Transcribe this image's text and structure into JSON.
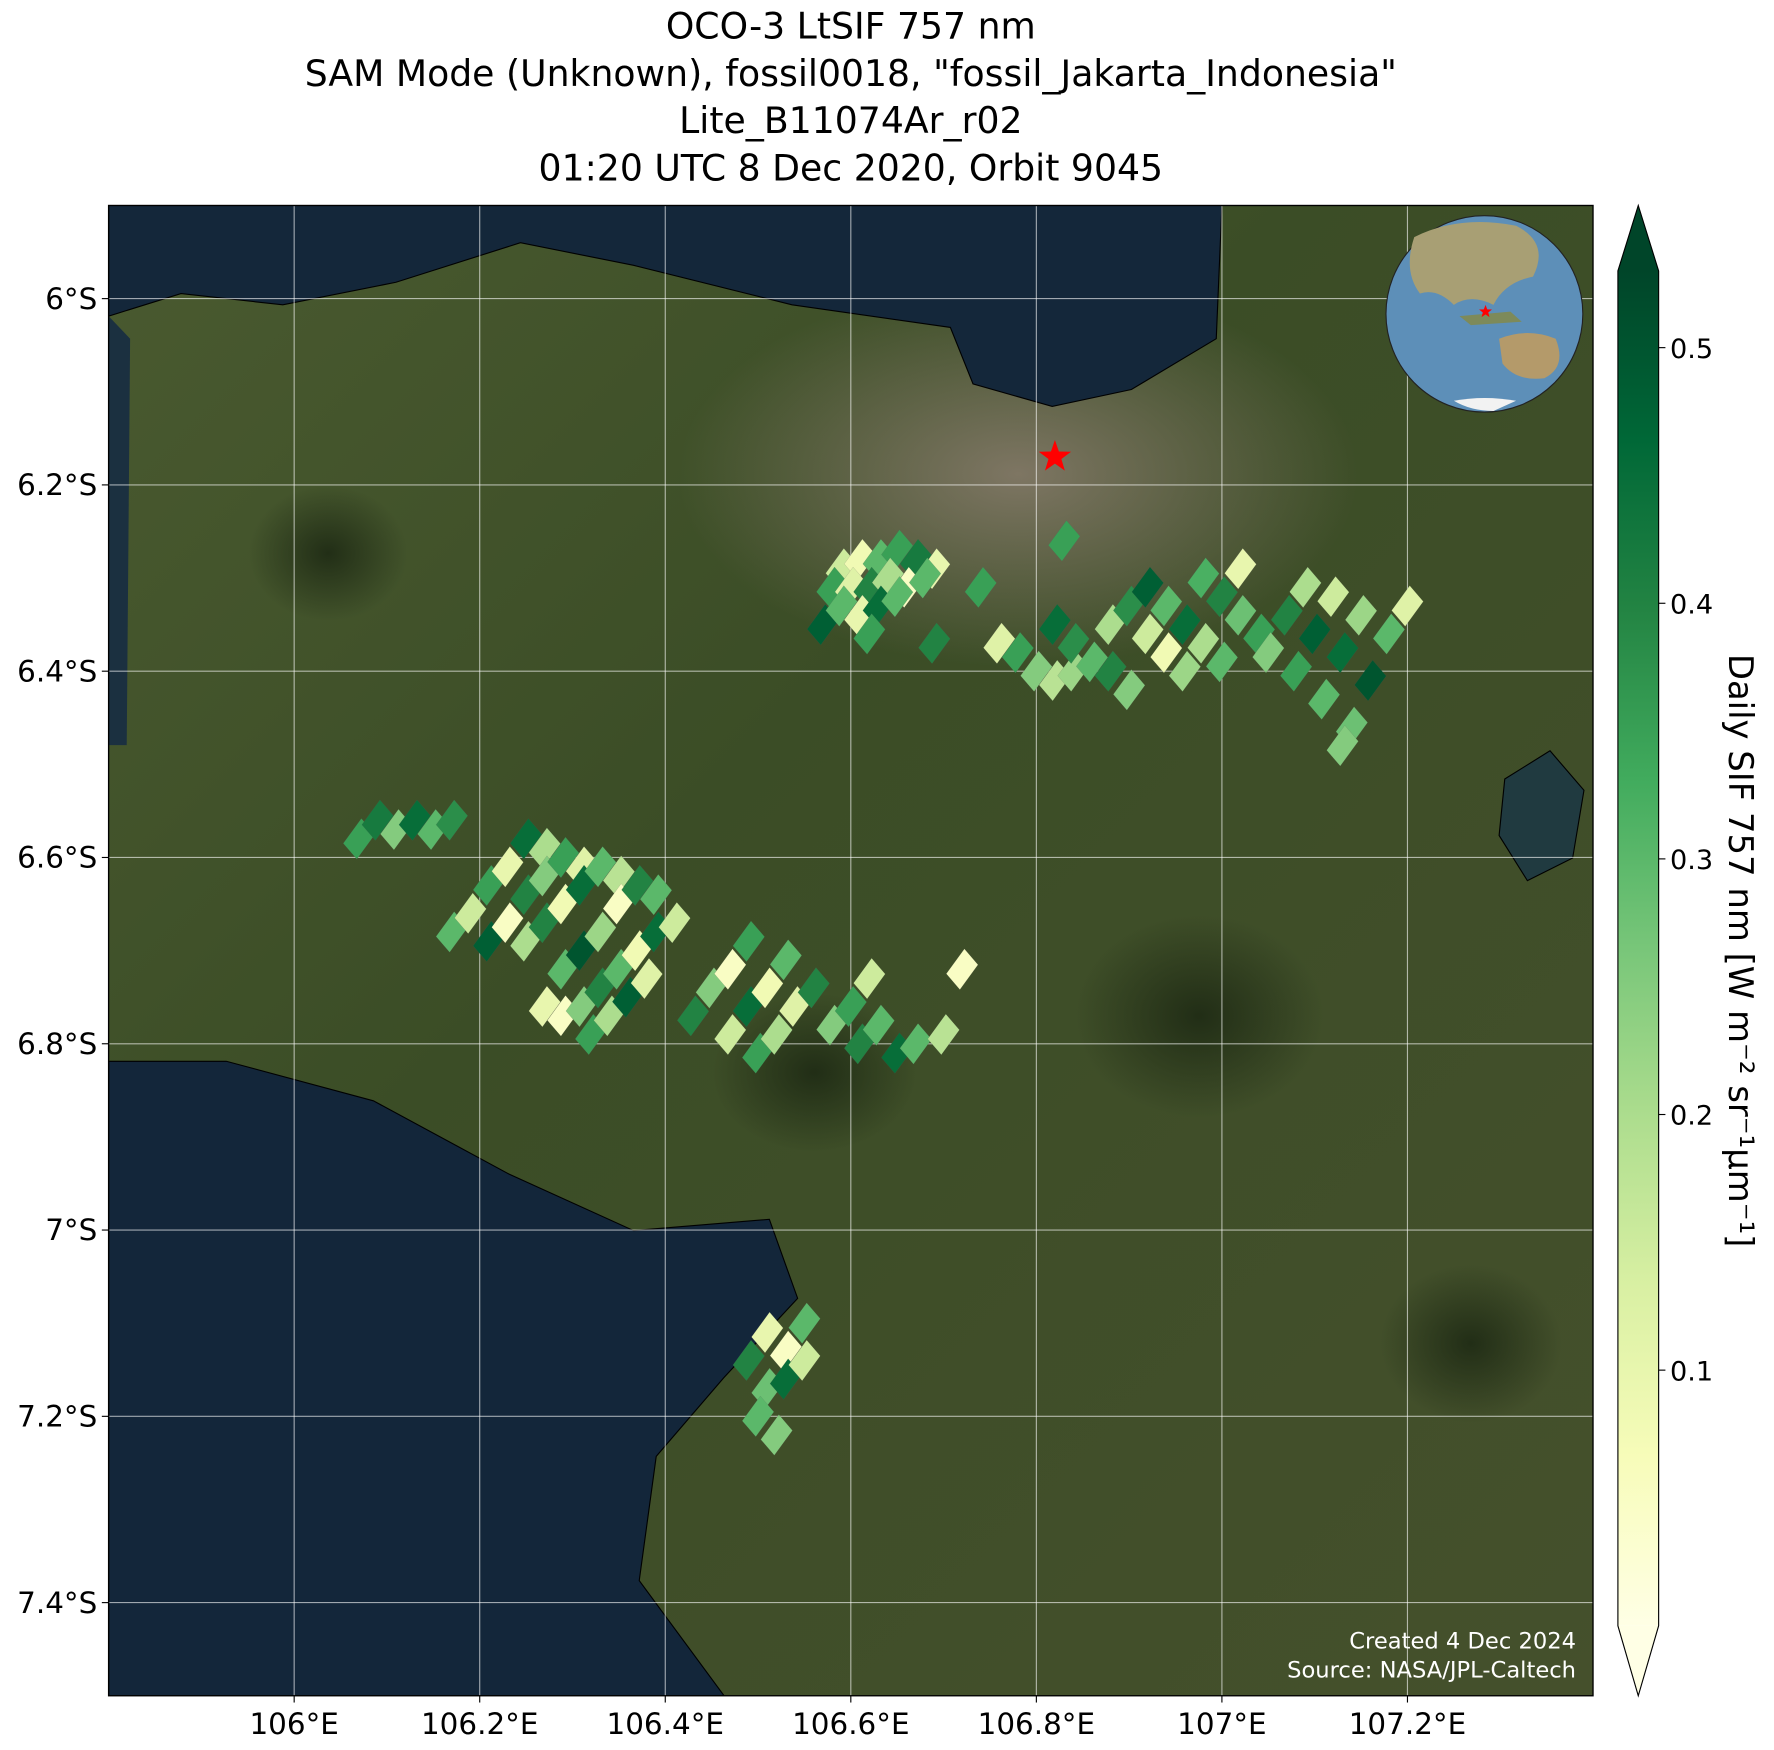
{
  "chart_data": {
    "type": "footprint-map",
    "title_lines": [
      "OCO-3 LtSIF 757 nm",
      "SAM Mode (Unknown), fossil0018, \"fossil_Jakarta_Indonesia\"",
      "Lite_B11074Ar_r02",
      "01:20 UTC 8 Dec 2020, Orbit 9045"
    ],
    "xlim": [
      105.8,
      107.4
    ],
    "ylim": [
      -7.5,
      -5.9
    ],
    "xticks": [
      {
        "value": 106,
        "label": "106°E"
      },
      {
        "value": 106.2,
        "label": "106.2°E"
      },
      {
        "value": 106.4,
        "label": "106.4°E"
      },
      {
        "value": 106.6,
        "label": "106.6°E"
      },
      {
        "value": 106.8,
        "label": "106.8°E"
      },
      {
        "value": 107,
        "label": "107°E"
      },
      {
        "value": 107.2,
        "label": "107.2°E"
      }
    ],
    "yticks": [
      {
        "value": -6,
        "label": "6°S"
      },
      {
        "value": -6.2,
        "label": "6.2°S"
      },
      {
        "value": -6.4,
        "label": "6.4°S"
      },
      {
        "value": -6.6,
        "label": "6.6°S"
      },
      {
        "value": -6.8,
        "label": "6.8°S"
      },
      {
        "value": -7,
        "label": "7°S"
      },
      {
        "value": -7.2,
        "label": "7.2°S"
      },
      {
        "value": -7.4,
        "label": "7.4°S"
      }
    ],
    "grid": true,
    "colorbar": {
      "label": "Daily SIF 757 nm [W m⁻² sr⁻¹μm⁻¹]",
      "clim": [
        0,
        0.53
      ],
      "ticks": [
        0.1,
        0.2,
        0.3,
        0.4,
        0.5
      ],
      "extend": "both"
    },
    "colormap": [
      "#ffffe5",
      "#f7fcb9",
      "#d9f0a3",
      "#addd8e",
      "#78c679",
      "#41ab5d",
      "#238443",
      "#006837",
      "#004529"
    ],
    "target": {
      "lon": 106.82,
      "lat": -6.17,
      "color": "#ff0000"
    },
    "annotations": [
      "Created 4 Dec 2024",
      "Source: NASA/JPL-Caltech"
    ],
    "points": [
      {
        "lon": 106.59,
        "lat": -6.29,
        "value": 0.15
      },
      {
        "lon": 106.61,
        "lat": -6.28,
        "value": 0.08
      },
      {
        "lon": 106.63,
        "lat": -6.28,
        "value": 0.3
      },
      {
        "lon": 106.65,
        "lat": -6.27,
        "value": 0.35
      },
      {
        "lon": 106.67,
        "lat": -6.28,
        "value": 0.42
      },
      {
        "lon": 106.69,
        "lat": -6.29,
        "value": 0.1
      },
      {
        "lon": 106.58,
        "lat": -6.31,
        "value": 0.35
      },
      {
        "lon": 106.6,
        "lat": -6.31,
        "value": 0.12
      },
      {
        "lon": 106.62,
        "lat": -6.31,
        "value": 0.4
      },
      {
        "lon": 106.64,
        "lat": -6.3,
        "value": 0.2
      },
      {
        "lon": 106.66,
        "lat": -6.31,
        "value": 0.05
      },
      {
        "lon": 106.68,
        "lat": -6.3,
        "value": 0.3
      },
      {
        "lon": 106.57,
        "lat": -6.35,
        "value": 0.48
      },
      {
        "lon": 106.59,
        "lat": -6.33,
        "value": 0.3
      },
      {
        "lon": 106.61,
        "lat": -6.34,
        "value": 0.1
      },
      {
        "lon": 106.63,
        "lat": -6.33,
        "value": 0.45
      },
      {
        "lon": 106.65,
        "lat": -6.32,
        "value": 0.3
      },
      {
        "lon": 106.62,
        "lat": -6.36,
        "value": 0.35
      },
      {
        "lon": 106.69,
        "lat": -6.37,
        "value": 0.4
      },
      {
        "lon": 106.74,
        "lat": -6.31,
        "value": 0.35
      },
      {
        "lon": 106.83,
        "lat": -6.26,
        "value": 0.35
      },
      {
        "lon": 106.76,
        "lat": -6.37,
        "value": 0.12
      },
      {
        "lon": 106.78,
        "lat": -6.38,
        "value": 0.35
      },
      {
        "lon": 106.8,
        "lat": -6.4,
        "value": 0.25
      },
      {
        "lon": 106.82,
        "lat": -6.41,
        "value": 0.18
      },
      {
        "lon": 106.84,
        "lat": -6.4,
        "value": 0.22
      },
      {
        "lon": 106.82,
        "lat": -6.35,
        "value": 0.45
      },
      {
        "lon": 106.84,
        "lat": -6.37,
        "value": 0.38
      },
      {
        "lon": 106.86,
        "lat": -6.39,
        "value": 0.3
      },
      {
        "lon": 106.88,
        "lat": -6.4,
        "value": 0.4
      },
      {
        "lon": 106.9,
        "lat": -6.42,
        "value": 0.25
      },
      {
        "lon": 106.88,
        "lat": -6.35,
        "value": 0.2
      },
      {
        "lon": 106.9,
        "lat": -6.33,
        "value": 0.38
      },
      {
        "lon": 106.92,
        "lat": -6.36,
        "value": 0.15
      },
      {
        "lon": 106.94,
        "lat": -6.38,
        "value": 0.08
      },
      {
        "lon": 106.96,
        "lat": -6.4,
        "value": 0.22
      },
      {
        "lon": 106.92,
        "lat": -6.31,
        "value": 0.48
      },
      {
        "lon": 106.94,
        "lat": -6.33,
        "value": 0.3
      },
      {
        "lon": 106.96,
        "lat": -6.35,
        "value": 0.45
      },
      {
        "lon": 106.98,
        "lat": -6.37,
        "value": 0.2
      },
      {
        "lon": 107,
        "lat": -6.39,
        "value": 0.3
      },
      {
        "lon": 106.98,
        "lat": -6.3,
        "value": 0.32
      },
      {
        "lon": 107,
        "lat": -6.32,
        "value": 0.4
      },
      {
        "lon": 107.02,
        "lat": -6.34,
        "value": 0.28
      },
      {
        "lon": 107.04,
        "lat": -6.36,
        "value": 0.35
      },
      {
        "lon": 107.02,
        "lat": -6.29,
        "value": 0.1
      },
      {
        "lon": 107.05,
        "lat": -6.38,
        "value": 0.25
      },
      {
        "lon": 107.07,
        "lat": -6.34,
        "value": 0.4
      },
      {
        "lon": 107.09,
        "lat": -6.31,
        "value": 0.2
      },
      {
        "lon": 107.08,
        "lat": -6.4,
        "value": 0.35
      },
      {
        "lon": 107.1,
        "lat": -6.36,
        "value": 0.48
      },
      {
        "lon": 107.12,
        "lat": -6.32,
        "value": 0.15
      },
      {
        "lon": 107.11,
        "lat": -6.43,
        "value": 0.3
      },
      {
        "lon": 107.13,
        "lat": -6.38,
        "value": 0.45
      },
      {
        "lon": 107.15,
        "lat": -6.34,
        "value": 0.22
      },
      {
        "lon": 107.14,
        "lat": -6.46,
        "value": 0.28
      },
      {
        "lon": 107.16,
        "lat": -6.41,
        "value": 0.5
      },
      {
        "lon": 107.18,
        "lat": -6.36,
        "value": 0.3
      },
      {
        "lon": 107.2,
        "lat": -6.33,
        "value": 0.12
      },
      {
        "lon": 107.13,
        "lat": -6.48,
        "value": 0.25
      },
      {
        "lon": 106.07,
        "lat": -6.58,
        "value": 0.35
      },
      {
        "lon": 106.09,
        "lat": -6.56,
        "value": 0.42
      },
      {
        "lon": 106.11,
        "lat": -6.57,
        "value": 0.25
      },
      {
        "lon": 106.13,
        "lat": -6.56,
        "value": 0.45
      },
      {
        "lon": 106.15,
        "lat": -6.57,
        "value": 0.3
      },
      {
        "lon": 106.17,
        "lat": -6.56,
        "value": 0.38
      },
      {
        "lon": 106.17,
        "lat": -6.68,
        "value": 0.3
      },
      {
        "lon": 106.19,
        "lat": -6.66,
        "value": 0.15
      },
      {
        "lon": 106.21,
        "lat": -6.63,
        "value": 0.35
      },
      {
        "lon": 106.23,
        "lat": -6.61,
        "value": 0.1
      },
      {
        "lon": 106.25,
        "lat": -6.58,
        "value": 0.45
      },
      {
        "lon": 106.27,
        "lat": -6.59,
        "value": 0.2
      },
      {
        "lon": 106.21,
        "lat": -6.69,
        "value": 0.48
      },
      {
        "lon": 106.23,
        "lat": -6.67,
        "value": 0.05
      },
      {
        "lon": 106.25,
        "lat": -6.64,
        "value": 0.4
      },
      {
        "lon": 106.27,
        "lat": -6.62,
        "value": 0.25
      },
      {
        "lon": 106.29,
        "lat": -6.6,
        "value": 0.35
      },
      {
        "lon": 106.31,
        "lat": -6.61,
        "value": 0.12
      },
      {
        "lon": 106.25,
        "lat": -6.69,
        "value": 0.2
      },
      {
        "lon": 106.27,
        "lat": -6.67,
        "value": 0.4
      },
      {
        "lon": 106.29,
        "lat": -6.65,
        "value": 0.08
      },
      {
        "lon": 106.31,
        "lat": -6.63,
        "value": 0.45
      },
      {
        "lon": 106.33,
        "lat": -6.61,
        "value": 0.3
      },
      {
        "lon": 106.35,
        "lat": -6.62,
        "value": 0.18
      },
      {
        "lon": 106.29,
        "lat": -6.72,
        "value": 0.3
      },
      {
        "lon": 106.31,
        "lat": -6.7,
        "value": 0.5
      },
      {
        "lon": 106.33,
        "lat": -6.68,
        "value": 0.22
      },
      {
        "lon": 106.35,
        "lat": -6.65,
        "value": 0.05
      },
      {
        "lon": 106.37,
        "lat": -6.63,
        "value": 0.4
      },
      {
        "lon": 106.39,
        "lat": -6.64,
        "value": 0.3
      },
      {
        "lon": 106.27,
        "lat": -6.76,
        "value": 0.1
      },
      {
        "lon": 106.29,
        "lat": -6.77,
        "value": 0.05
      },
      {
        "lon": 106.31,
        "lat": -6.76,
        "value": 0.25
      },
      {
        "lon": 106.33,
        "lat": -6.74,
        "value": 0.4
      },
      {
        "lon": 106.35,
        "lat": -6.72,
        "value": 0.3
      },
      {
        "lon": 106.37,
        "lat": -6.7,
        "value": 0.08
      },
      {
        "lon": 106.39,
        "lat": -6.68,
        "value": 0.45
      },
      {
        "lon": 106.41,
        "lat": -6.67,
        "value": 0.15
      },
      {
        "lon": 106.32,
        "lat": -6.79,
        "value": 0.35
      },
      {
        "lon": 106.34,
        "lat": -6.77,
        "value": 0.2
      },
      {
        "lon": 106.36,
        "lat": -6.75,
        "value": 0.48
      },
      {
        "lon": 106.38,
        "lat": -6.73,
        "value": 0.12
      },
      {
        "lon": 106.43,
        "lat": -6.77,
        "value": 0.4
      },
      {
        "lon": 106.45,
        "lat": -6.74,
        "value": 0.25
      },
      {
        "lon": 106.47,
        "lat": -6.72,
        "value": 0.05
      },
      {
        "lon": 106.49,
        "lat": -6.69,
        "value": 0.35
      },
      {
        "lon": 106.47,
        "lat": -6.79,
        "value": 0.15
      },
      {
        "lon": 106.49,
        "lat": -6.76,
        "value": 0.45
      },
      {
        "lon": 106.51,
        "lat": -6.74,
        "value": 0.08
      },
      {
        "lon": 106.53,
        "lat": -6.71,
        "value": 0.3
      },
      {
        "lon": 106.5,
        "lat": -6.81,
        "value": 0.35
      },
      {
        "lon": 106.52,
        "lat": -6.79,
        "value": 0.2
      },
      {
        "lon": 106.54,
        "lat": -6.76,
        "value": 0.12
      },
      {
        "lon": 106.56,
        "lat": -6.74,
        "value": 0.4
      },
      {
        "lon": 106.58,
        "lat": -6.78,
        "value": 0.25
      },
      {
        "lon": 106.6,
        "lat": -6.76,
        "value": 0.35
      },
      {
        "lon": 106.62,
        "lat": -6.73,
        "value": 0.15
      },
      {
        "lon": 106.61,
        "lat": -6.8,
        "value": 0.4
      },
      {
        "lon": 106.63,
        "lat": -6.78,
        "value": 0.3
      },
      {
        "lon": 106.65,
        "lat": -6.81,
        "value": 0.45
      },
      {
        "lon": 106.67,
        "lat": -6.8,
        "value": 0.3
      },
      {
        "lon": 106.7,
        "lat": -6.79,
        "value": 0.18
      },
      {
        "lon": 106.72,
        "lat": -6.72,
        "value": 0.05
      },
      {
        "lon": 106.49,
        "lat": -7.14,
        "value": 0.4
      },
      {
        "lon": 106.51,
        "lat": -7.11,
        "value": 0.1
      },
      {
        "lon": 106.53,
        "lat": -7.13,
        "value": 0.05
      },
      {
        "lon": 106.55,
        "lat": -7.1,
        "value": 0.3
      },
      {
        "lon": 106.51,
        "lat": -7.17,
        "value": 0.28
      },
      {
        "lon": 106.53,
        "lat": -7.16,
        "value": 0.45
      },
      {
        "lon": 106.55,
        "lat": -7.14,
        "value": 0.15
      },
      {
        "lon": 106.5,
        "lat": -7.2,
        "value": 0.3
      },
      {
        "lon": 106.52,
        "lat": -7.22,
        "value": 0.25
      }
    ]
  }
}
